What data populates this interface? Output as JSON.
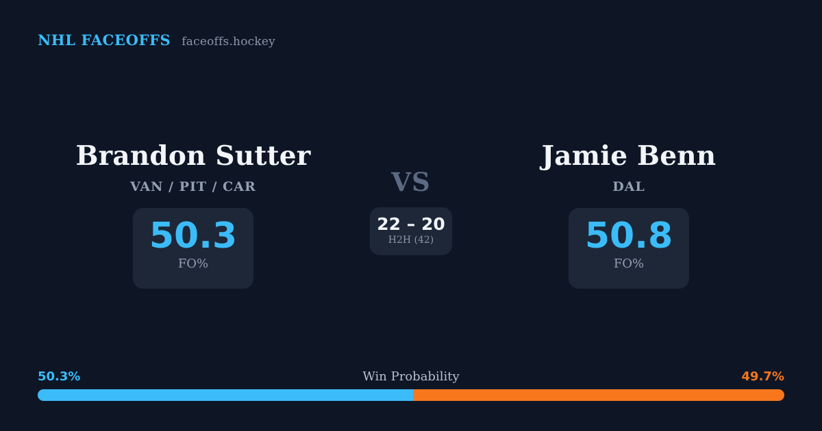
{
  "header": {
    "brand": "NHL FACEOFFS",
    "domain": "faceoffs.hockey"
  },
  "players": {
    "left": {
      "name": "Brandon Sutter",
      "teams": "VAN / PIT / CAR",
      "fo_pct": "50.3",
      "stat_label": "FO%"
    },
    "right": {
      "name": "Jamie Benn",
      "teams": "DAL",
      "fo_pct": "50.8",
      "stat_label": "FO%"
    }
  },
  "matchup": {
    "vs_label": "VS",
    "h2h_score": "22 – 20",
    "h2h_label": "H2H (42)"
  },
  "win_probability": {
    "title": "Win Probability",
    "left_pct_label": "50.3%",
    "right_pct_label": "49.7%",
    "left_value": 50.3,
    "right_value": 49.7
  },
  "colors": {
    "background": "#0e1626",
    "card": "#1d2737",
    "accent_blue": "#3bbcf8",
    "accent_orange": "#f8771d",
    "text_primary": "#f2f5f9",
    "text_muted": "#94a0b2",
    "text_dim": "#8b96a6",
    "vs": "#5b6a82",
    "winprob_title": "#b6c0ce"
  }
}
